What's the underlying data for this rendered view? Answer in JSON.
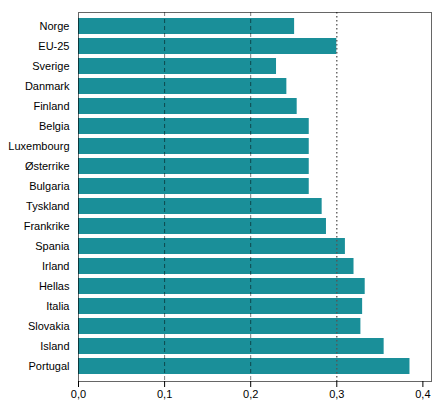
{
  "chart_data": {
    "type": "bar",
    "orientation": "horizontal",
    "categories": [
      "Norge",
      "EU-25",
      "Sverige",
      "Danmark",
      "Finland",
      "Belgia",
      "Luxembourg",
      "Østerrike",
      "Bulgaria",
      "Tyskland",
      "Frankrike",
      "Spania",
      "Irland",
      "Hellas",
      "Italia",
      "Slovakia",
      "Island",
      "Portugal"
    ],
    "values": [
      0.251,
      0.3,
      0.23,
      0.242,
      0.254,
      0.268,
      0.268,
      0.268,
      0.268,
      0.283,
      0.288,
      0.31,
      0.32,
      0.333,
      0.33,
      0.328,
      0.355,
      0.385
    ],
    "color": "#1a8f99",
    "xlim": [
      0.0,
      0.41
    ],
    "xticks": [
      {
        "value": 0.0,
        "label": "0,0"
      },
      {
        "value": 0.1,
        "label": "0,1"
      },
      {
        "value": 0.2,
        "label": "0,2"
      },
      {
        "value": 0.3,
        "label": "0,3"
      },
      {
        "value": 0.4,
        "label": "0,4"
      }
    ],
    "grid": true,
    "grid_lines": [
      0.1,
      0.2
    ],
    "reference_line": {
      "value": 0.3,
      "color": "#555555"
    }
  }
}
